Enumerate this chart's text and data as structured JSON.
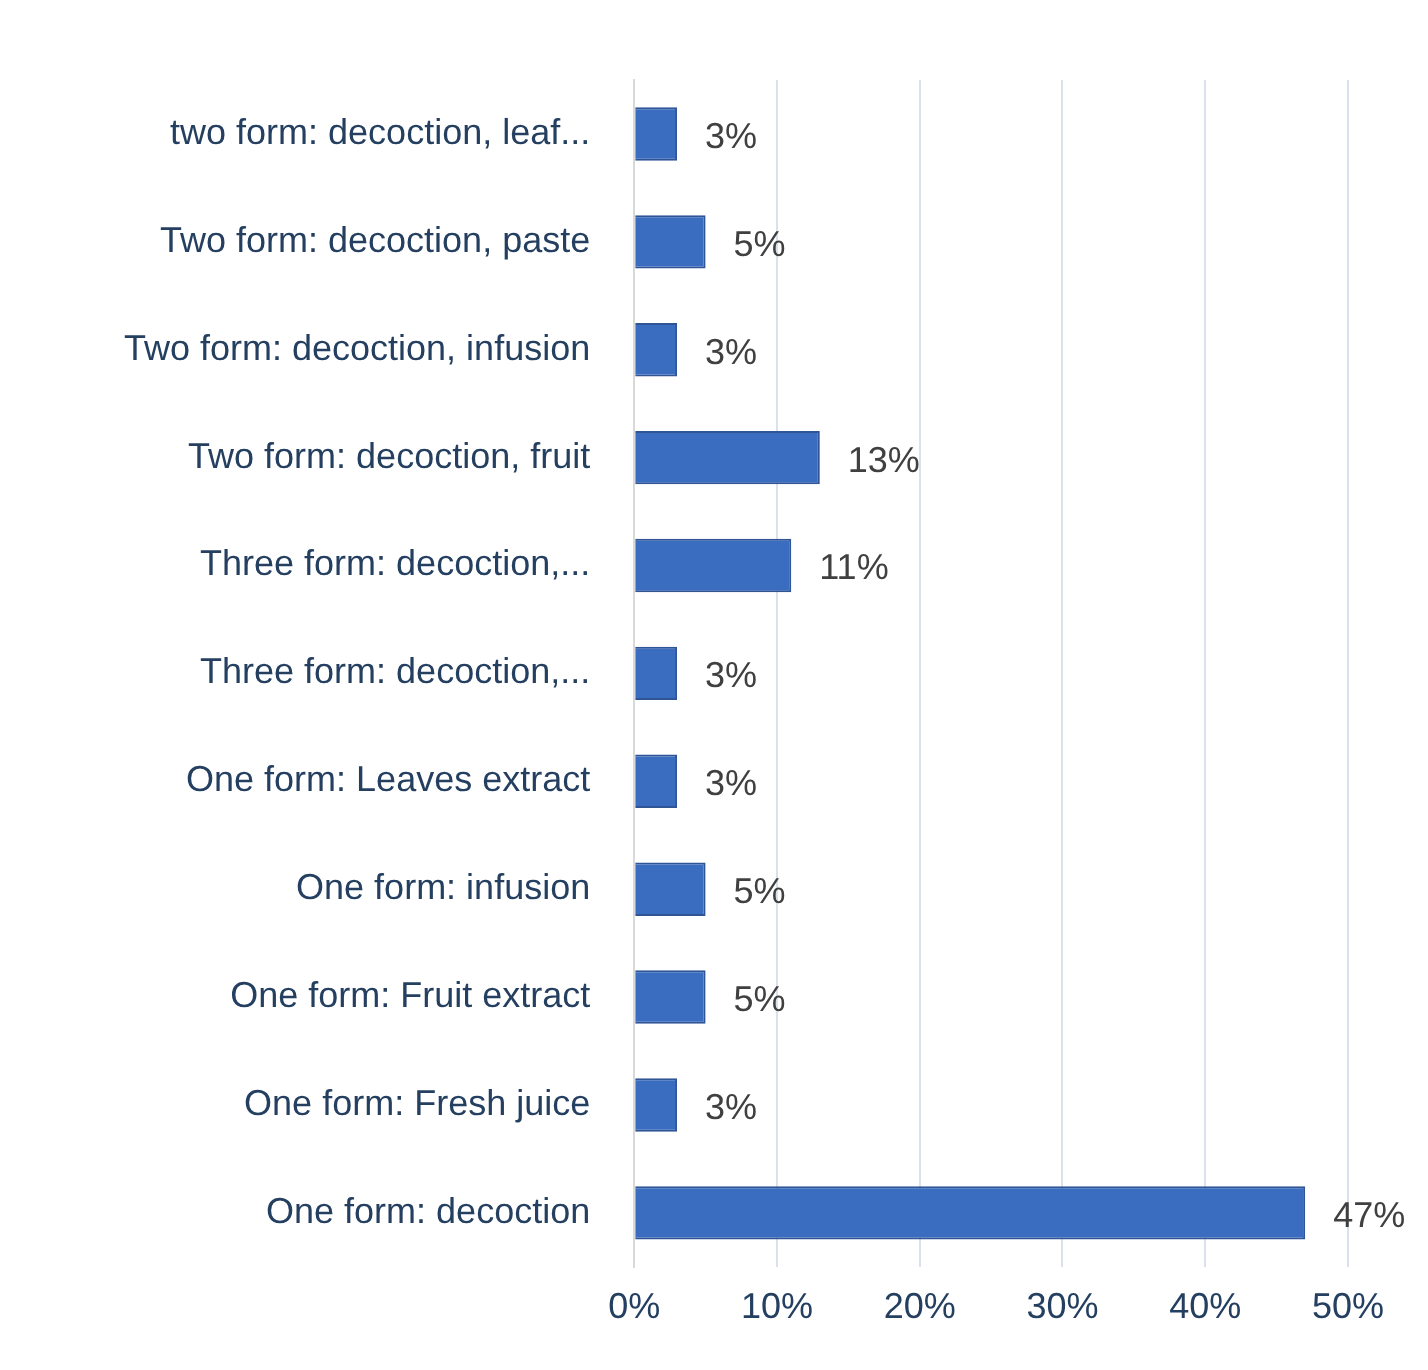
{
  "chart_data": {
    "type": "bar",
    "orientation": "horizontal",
    "categories": [
      "two form: decoction, leaf...",
      "Two form: decoction, paste",
      "Two form: decoction, infusion",
      "Two form: decoction, fruit",
      "Three form: decoction,...",
      "Three form: decoction,...",
      "One form: Leaves extract",
      "One form: infusion",
      "One form: Fruit extract",
      "One form: Fresh juice",
      "One form: decoction"
    ],
    "values": [
      3,
      5,
      3,
      13,
      11,
      3,
      3,
      5,
      5,
      3,
      47
    ],
    "value_labels": [
      "3%",
      "5%",
      "3%",
      "13%",
      "11%",
      "3%",
      "3%",
      "5%",
      "5%",
      "3%",
      "47%"
    ],
    "color": "#3a6cbf",
    "xlim": [
      0,
      50
    ],
    "xticks": [
      {
        "value": 0,
        "label": "0%"
      },
      {
        "value": 10,
        "label": "10%"
      },
      {
        "value": 20,
        "label": "20%"
      },
      {
        "value": 30,
        "label": "30%"
      },
      {
        "value": 40,
        "label": "40%"
      },
      {
        "value": 50,
        "label": "50%"
      }
    ],
    "grid": "x",
    "legend": false
  }
}
